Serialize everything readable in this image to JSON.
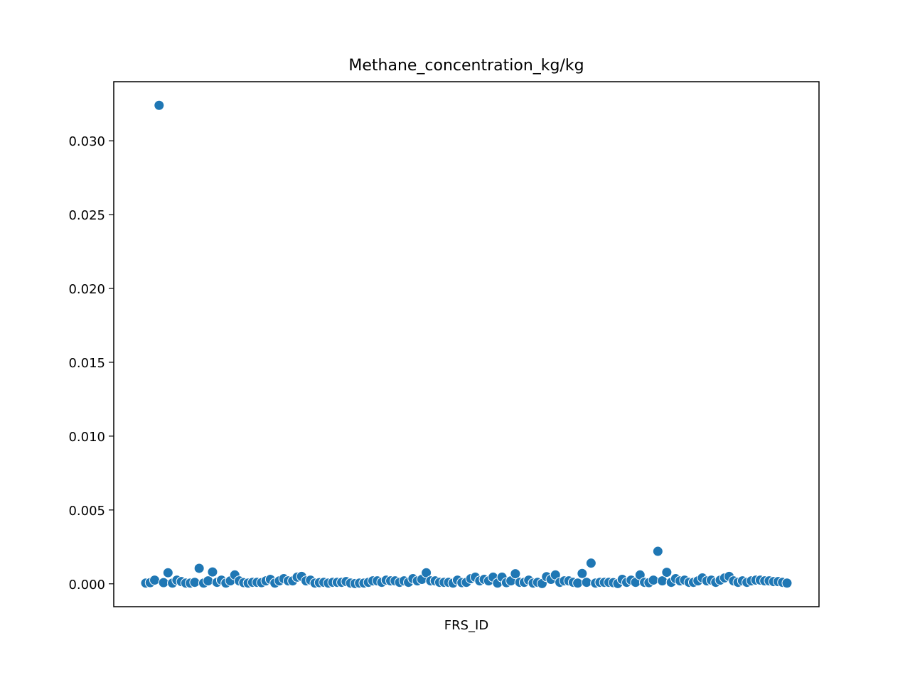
{
  "chart_data": {
    "type": "scatter",
    "title": "Methane_concentration_kg/kg",
    "xlabel": "FRS_ID",
    "ylabel": "",
    "ylim": [
      -0.00155,
      0.034
    ],
    "yticks": [
      0.0,
      0.005,
      0.01,
      0.015,
      0.02,
      0.025,
      0.03
    ],
    "ytick_labels": [
      "0.000",
      "0.005",
      "0.010",
      "0.015",
      "0.020",
      "0.025",
      "0.030"
    ],
    "xticks": [],
    "grid": false,
    "marker_color": "#1f77b4",
    "series": [
      {
        "values": [
          5e-05,
          8e-05,
          0.00025,
          0.0324,
          8e-05,
          0.00075,
          5e-05,
          0.00025,
          0.00015,
          5e-05,
          5e-05,
          0.0001,
          0.00105,
          5e-05,
          0.0002,
          0.0008,
          0.0001,
          0.00025,
          5e-05,
          0.0002,
          0.0006,
          0.0002,
          8e-05,
          5e-05,
          0.0001,
          0.0001,
          8e-05,
          0.0002,
          0.0003,
          5e-05,
          0.0002,
          0.00035,
          0.0002,
          0.0002,
          0.00045,
          0.0005,
          0.0002,
          0.00025,
          5e-05,
          8e-05,
          0.0001,
          5e-05,
          0.0001,
          0.0001,
          0.0001,
          0.00015,
          5e-05,
          2e-05,
          5e-05,
          5e-05,
          0.0001,
          0.0002,
          0.0002,
          0.0001,
          0.00025,
          0.0002,
          0.0002,
          0.0001,
          0.0002,
          0.0001,
          0.00035,
          0.0002,
          0.0003,
          0.00075,
          0.0002,
          0.0002,
          0.0001,
          0.0001,
          0.0001,
          5e-05,
          0.00025,
          8e-05,
          0.0001,
          0.00035,
          0.00045,
          0.0002,
          0.0003,
          0.0002,
          0.00045,
          5e-05,
          0.00045,
          8e-05,
          0.0002,
          0.00068,
          0.0001,
          0.0001,
          0.00025,
          5e-05,
          0.0001,
          2e-05,
          0.00048,
          0.0003,
          0.0006,
          0.0001,
          0.0002,
          0.0002,
          0.0001,
          5e-05,
          0.0007,
          0.0001,
          0.0014,
          5e-05,
          0.0001,
          0.0001,
          0.0001,
          8e-05,
          2e-05,
          0.0003,
          0.0001,
          0.00025,
          0.0001,
          0.0006,
          0.0001,
          8e-05,
          0.00025,
          0.0022,
          0.0002,
          0.00078,
          0.0001,
          0.00035,
          0.0002,
          0.00025,
          0.0001,
          0.0001,
          0.0002,
          0.0004,
          0.0002,
          0.00025,
          0.0001,
          0.00025,
          0.0004,
          0.0005,
          0.0002,
          0.0001,
          0.0002,
          0.0001,
          0.0002,
          0.00025,
          0.00025,
          0.0002,
          0.0002,
          0.00015,
          0.00015,
          0.0001,
          5e-05
        ]
      }
    ]
  }
}
